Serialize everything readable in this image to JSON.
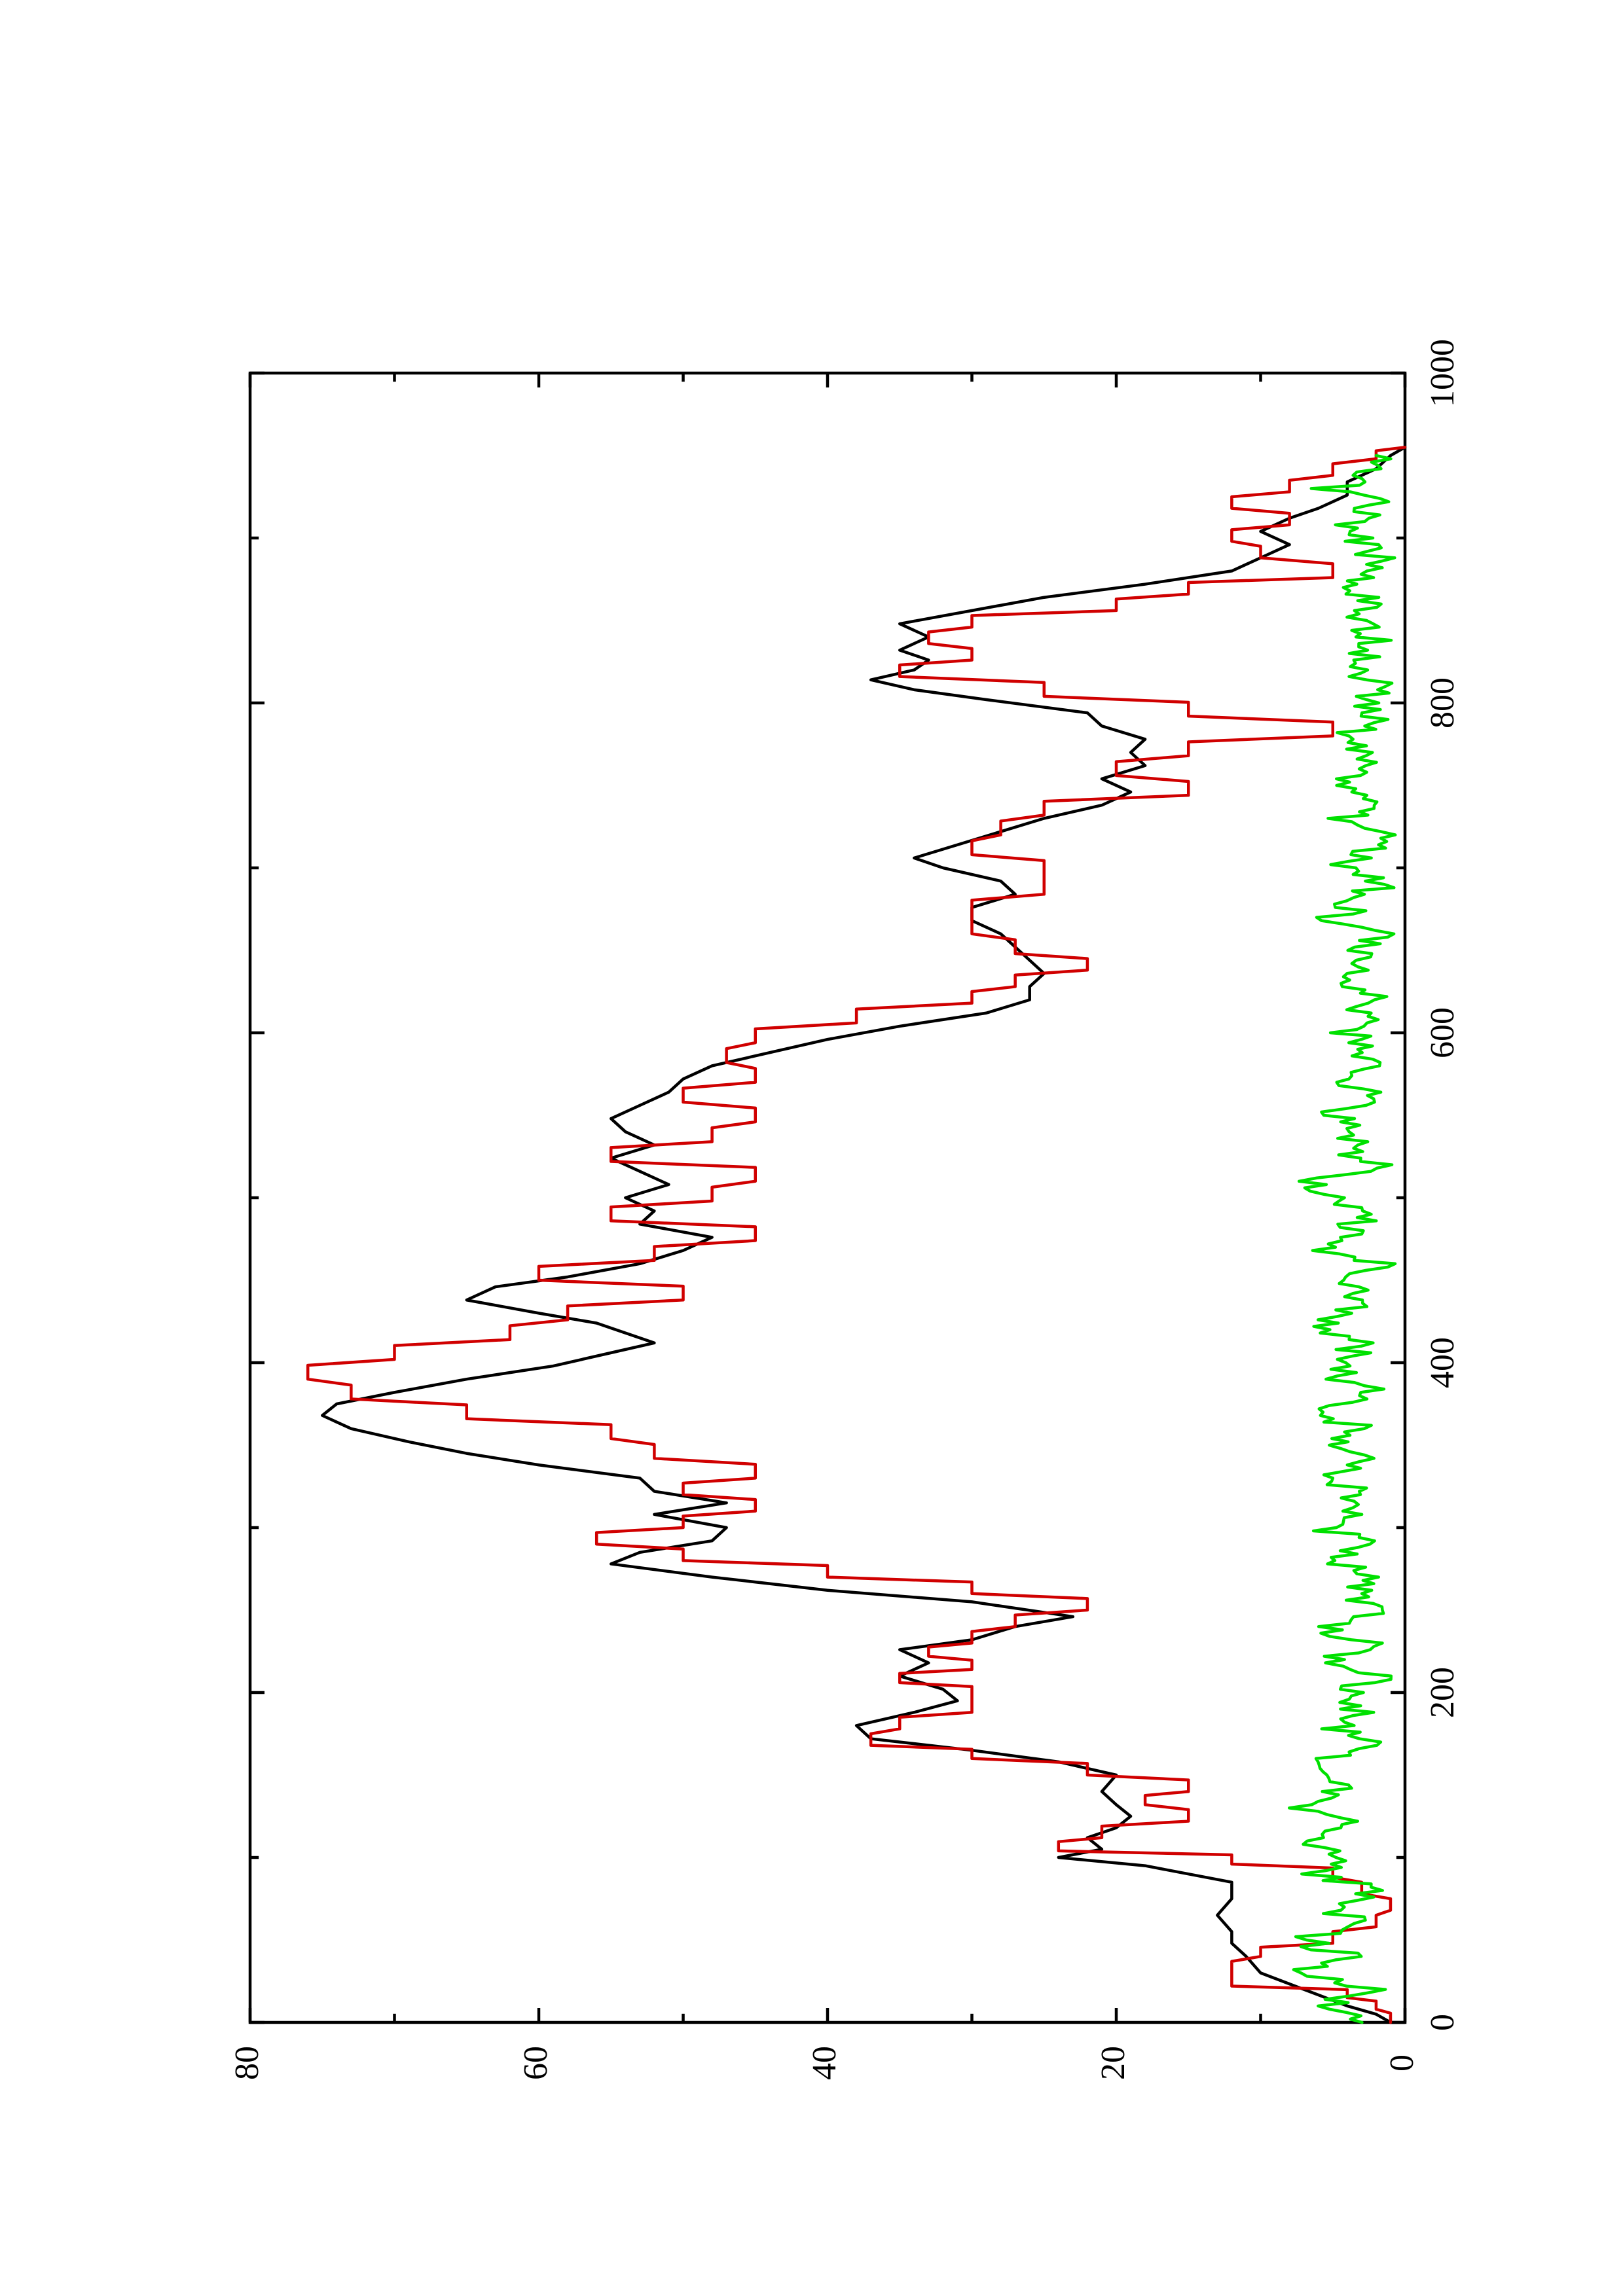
{
  "chart_data": {
    "type": "line",
    "orientation": "rotated-90-counterclockwise",
    "title": "",
    "xlabel": "",
    "ylabel": "",
    "xlim": [
      0,
      1000
    ],
    "ylim": [
      0,
      80
    ],
    "x_ticks": [
      0,
      200,
      400,
      600,
      800,
      1000
    ],
    "x_tick_labels": [
      "0",
      "200",
      "400",
      "600",
      "800",
      "1000"
    ],
    "y_ticks": [
      0,
      20,
      40,
      60,
      80
    ],
    "y_tick_labels": [
      "0",
      "20",
      "40",
      "60",
      "80"
    ],
    "grid": false,
    "legend": "none",
    "series": [
      {
        "color": "#000000",
        "style": "solid",
        "x": [
          0,
          5,
          10,
          20,
          30,
          40,
          48,
          55,
          65,
          75,
          85,
          95,
          100,
          105,
          112,
          118,
          125,
          132,
          140,
          150,
          158,
          165,
          172,
          180,
          188,
          195,
          202,
          210,
          218,
          226,
          232,
          240,
          246,
          255,
          262,
          270,
          278,
          285,
          292,
          300,
          308,
          315,
          322,
          330,
          338,
          345,
          352,
          360,
          368,
          375,
          382,
          390,
          398,
          406,
          412,
          418,
          424,
          430,
          438,
          446,
          452,
          460,
          468,
          476,
          484,
          492,
          500,
          508,
          516,
          524,
          532,
          540,
          548,
          556,
          564,
          572,
          580,
          588,
          596,
          604,
          612,
          620,
          628,
          636,
          644,
          652,
          660,
          668,
          676,
          684,
          692,
          700,
          706,
          714,
          722,
          730,
          738,
          746,
          754,
          762,
          770,
          778,
          786,
          794,
          802,
          808,
          814,
          820,
          826,
          832,
          840,
          848,
          856,
          864,
          872,
          880,
          888,
          896,
          904,
          912,
          918,
          926,
          934,
          942,
          950,
          955
        ],
        "y": [
          1,
          2,
          4,
          7,
          10,
          11,
          12,
          12,
          13,
          12,
          12,
          18,
          24,
          21,
          22,
          20,
          19,
          20,
          21,
          20,
          24,
          30,
          37,
          38,
          34,
          31,
          32,
          35,
          33,
          35,
          30,
          27,
          23,
          30,
          40,
          48,
          55,
          53,
          48,
          47,
          52,
          47,
          52,
          53,
          60,
          65,
          69,
          73,
          75,
          74,
          70,
          65,
          59,
          55,
          52,
          54,
          56,
          60,
          65,
          63,
          58,
          53,
          50,
          48,
          53,
          52,
          54,
          51,
          53,
          55,
          52,
          54,
          55,
          53,
          51,
          50,
          48,
          44,
          40,
          35,
          29,
          26,
          26,
          25,
          26,
          27,
          28,
          30,
          30,
          27,
          28,
          32,
          34,
          31,
          28,
          25,
          21,
          19,
          21,
          18,
          19,
          18,
          21,
          22,
          29,
          34,
          37,
          34,
          33,
          35,
          33,
          35,
          30,
          25,
          18,
          12,
          10,
          8,
          10,
          8,
          6,
          4,
          4,
          2,
          1,
          0
        ],
        "data-name": "series-black"
      },
      {
        "color": "#d00000",
        "style": "step",
        "x": [
          0,
          8,
          15,
          22,
          30,
          40,
          48,
          58,
          68,
          78,
          88,
          96,
          104,
          112,
          122,
          132,
          140,
          150,
          160,
          168,
          178,
          188,
          198,
          206,
          214,
          222,
          230,
          240,
          250,
          260,
          270,
          280,
          290,
          300,
          310,
          320,
          330,
          342,
          354,
          366,
          378,
          390,
          402,
          414,
          426,
          438,
          450,
          462,
          474,
          486,
          498,
          510,
          522,
          534,
          546,
          558,
          570,
          582,
          594,
          606,
          618,
          628,
          638,
          648,
          660,
          672,
          684,
          696,
          708,
          720,
          732,
          744,
          756,
          768,
          780,
          792,
          804,
          816,
          826,
          836,
          846,
          856,
          866,
          876,
          888,
          898,
          908,
          918,
          928,
          938,
          948,
          955
        ],
        "y": [
          1,
          2,
          4,
          12,
          12,
          10,
          5,
          2,
          1,
          3,
          5,
          12,
          24,
          21,
          15,
          18,
          15,
          22,
          30,
          37,
          35,
          30,
          30,
          35,
          30,
          33,
          30,
          27,
          22,
          30,
          40,
          50,
          56,
          50,
          45,
          50,
          45,
          52,
          55,
          65,
          73,
          76,
          70,
          62,
          58,
          50,
          60,
          52,
          45,
          55,
          48,
          45,
          55,
          48,
          45,
          50,
          45,
          47,
          45,
          38,
          30,
          27,
          22,
          27,
          30,
          30,
          25,
          25,
          30,
          28,
          25,
          15,
          20,
          15,
          5,
          15,
          25,
          35,
          30,
          33,
          30,
          20,
          15,
          5,
          10,
          12,
          8,
          12,
          8,
          5,
          2,
          0
        ],
        "data-name": "series-red"
      },
      {
        "color": "#00e000",
        "style": "noise",
        "x": [
          0,
          10,
          20,
          30,
          40,
          50,
          60,
          70,
          80,
          90,
          100,
          110,
          120,
          130,
          140,
          150,
          160,
          170,
          180,
          190,
          200,
          210,
          220,
          230,
          240,
          250,
          260,
          270,
          280,
          290,
          300,
          310,
          320,
          330,
          340,
          350,
          360,
          370,
          380,
          390,
          400,
          410,
          420,
          430,
          440,
          450,
          460,
          470,
          480,
          490,
          500,
          510,
          520,
          530,
          540,
          550,
          560,
          570,
          580,
          590,
          600,
          610,
          620,
          630,
          640,
          650,
          660,
          670,
          680,
          690,
          700,
          710,
          720,
          730,
          740,
          750,
          760,
          770,
          780,
          790,
          800,
          810,
          820,
          830,
          840,
          850,
          860,
          870,
          880,
          890,
          900,
          910,
          920,
          930,
          940,
          950
        ],
        "y": [
          3,
          6,
          2,
          8,
          4,
          7,
          3,
          5,
          2,
          6,
          4,
          8,
          3,
          7,
          5,
          4,
          6,
          2,
          5,
          3,
          4,
          2,
          5,
          3,
          6,
          2,
          4,
          3,
          5,
          2,
          6,
          4,
          3,
          5,
          2,
          4,
          3,
          6,
          2,
          4,
          5,
          3,
          6,
          4,
          3,
          5,
          2,
          6,
          4,
          3,
          5,
          6,
          2,
          4,
          3,
          5,
          2,
          4,
          3,
          2,
          4,
          3,
          2,
          5,
          3,
          4,
          2,
          5,
          3,
          2,
          4,
          3,
          2,
          4,
          3,
          5,
          2,
          3,
          4,
          2,
          3,
          2,
          4,
          3,
          2,
          3,
          2,
          4,
          3,
          2,
          3,
          4,
          2,
          5,
          3,
          2
        ],
        "data-name": "series-green"
      }
    ]
  }
}
